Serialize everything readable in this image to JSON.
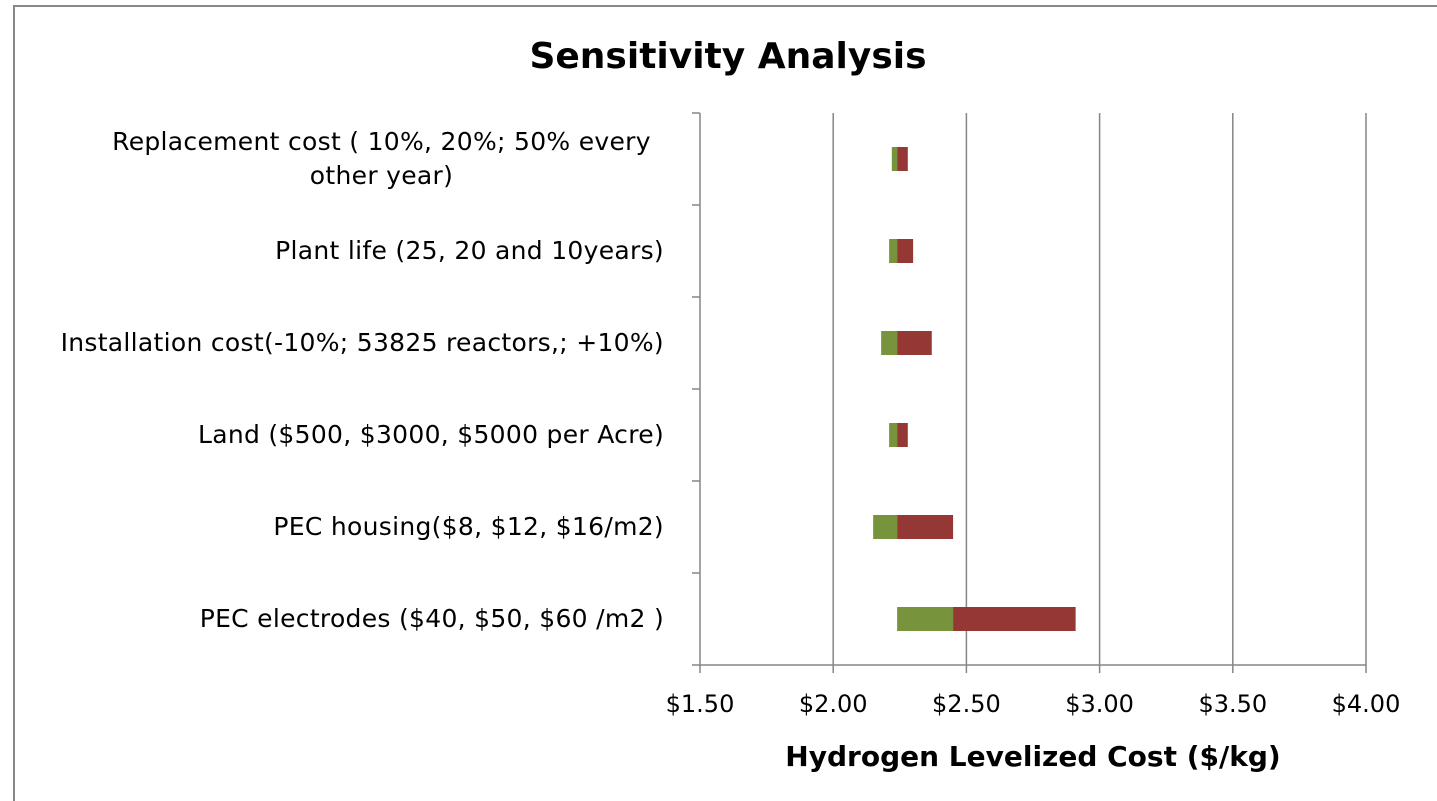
{
  "chart_data": {
    "type": "floating_bar",
    "title": "Sensitivity Analysis",
    "x_label": "Hydrogen Levelized Cost ($/kg)",
    "categories": [
      "Replacement cost ( 10%, 20%; 50% every other year)",
      "Plant life (25, 20 and 10years)",
      "Installation cost(-10%; 53825 reactors,; +10%)",
      "Land ($500, $3000, $5000 per Acre)",
      "PEC housing($8, $12, $16/m2)",
      "PEC electrodes ($40, $50, $60 /m2 )"
    ],
    "low": [
      2.22,
      2.21,
      2.18,
      2.21,
      2.15,
      2.24
    ],
    "mid": [
      2.24,
      2.24,
      2.24,
      2.24,
      2.24,
      2.45
    ],
    "high": [
      2.28,
      2.3,
      2.37,
      2.28,
      2.45,
      2.91
    ],
    "low_color": "#77933c",
    "high_color": "#953735",
    "xlim": [
      1.5,
      4.0
    ],
    "xticks": [
      {
        "value": 1.5,
        "label": "$1.50"
      },
      {
        "value": 2.0,
        "label": "$2.00"
      },
      {
        "value": 2.5,
        "label": "$2.50"
      },
      {
        "value": 3.0,
        "label": "$3.00"
      },
      {
        "value": 3.5,
        "label": "$3.50"
      },
      {
        "value": 4.0,
        "label": "$4.00"
      }
    ],
    "grid": true
  }
}
